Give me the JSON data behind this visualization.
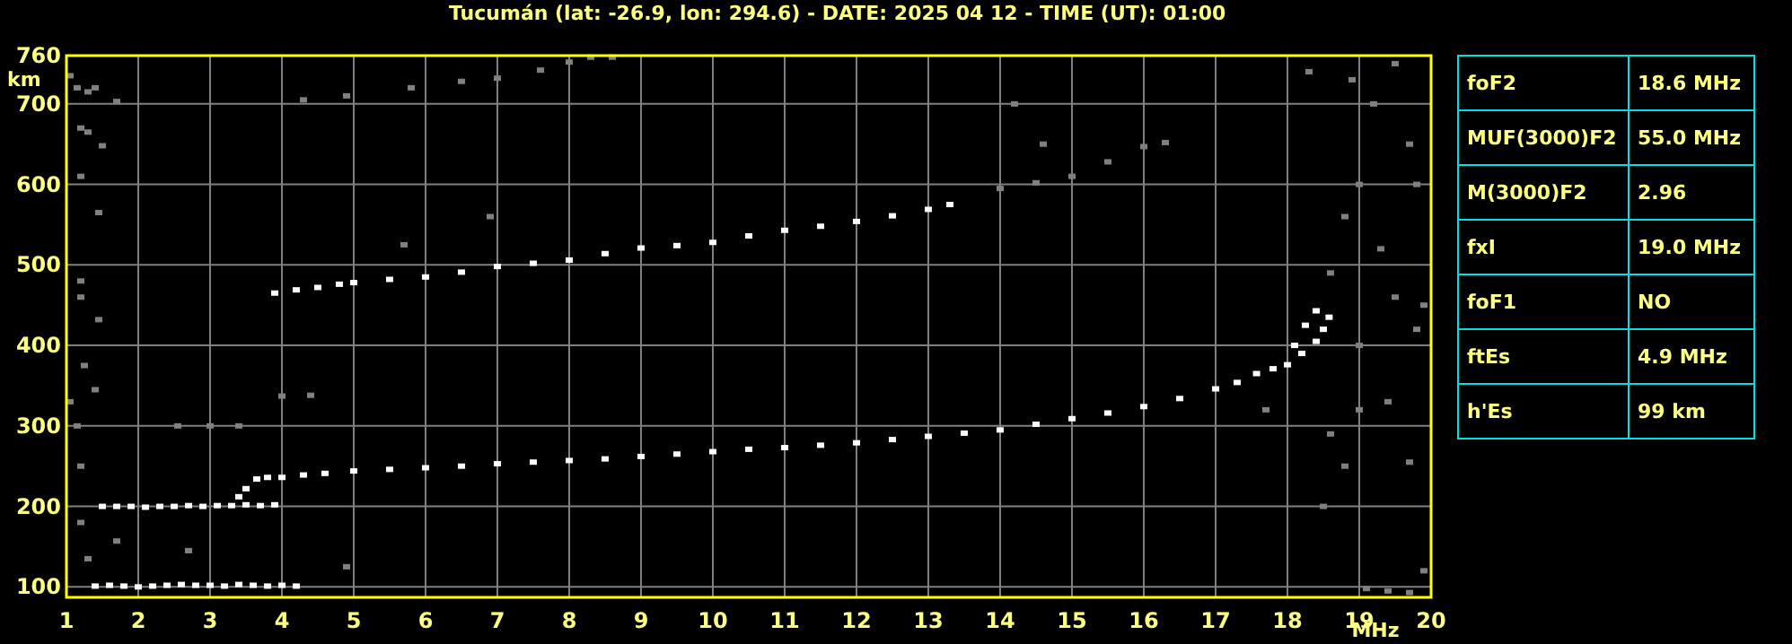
{
  "chart_data": [
    {
      "type": "scatter",
      "title": "Tucumán (lat: -26.9, lon: 294.6) - DATE: 2025 04 12 - TIME (UT): 01:00",
      "xlabel": "MHz",
      "ylabel": "km",
      "xlim": [
        1,
        20
      ],
      "ylim": [
        87,
        760
      ],
      "xticks": [
        1,
        2,
        3,
        4,
        5,
        6,
        7,
        8,
        9,
        10,
        11,
        12,
        13,
        14,
        15,
        16,
        17,
        18,
        19,
        20
      ],
      "yticks": [
        100,
        200,
        300,
        400,
        500,
        600,
        700,
        760
      ],
      "grid": true,
      "marker": "square",
      "series": [
        {
          "color": "#ffffff",
          "x": [
            1.4,
            1.6,
            1.8,
            2.0,
            2.2,
            2.4,
            2.6,
            2.8,
            3.0,
            3.2,
            3.4,
            3.6,
            3.8,
            4.0,
            4.2
          ],
          "values": [
            101,
            102,
            101,
            100,
            101,
            102,
            103,
            102,
            102,
            101,
            103,
            102,
            101,
            102,
            101
          ]
        },
        {
          "color": "#ffffff",
          "x": [
            1.5,
            1.7,
            1.9,
            2.1,
            2.3,
            2.5,
            2.7,
            2.9,
            3.1,
            3.3,
            3.5,
            3.7,
            3.9,
            3.4,
            3.5,
            3.65,
            3.8,
            4.0,
            4.3,
            4.6,
            5.0,
            5.5,
            6.0,
            6.5,
            7.0,
            7.5,
            8.0,
            8.5,
            9.0,
            9.5,
            10.0,
            10.5,
            11.0,
            11.5,
            12.0,
            12.5,
            13.0,
            13.5,
            14.0,
            14.5,
            15.0,
            15.5,
            16.0,
            16.5,
            17.0,
            17.3,
            17.57,
            17.8,
            18.0,
            18.2,
            18.4,
            18.5,
            18.58,
            18.1,
            18.25,
            18.4
          ],
          "values": [
            200,
            200,
            200,
            199,
            200,
            200,
            201,
            200,
            201,
            201,
            202,
            201,
            202,
            212,
            222,
            234,
            236,
            236,
            239,
            241,
            244,
            246,
            248,
            250,
            253,
            255,
            257,
            259,
            262,
            265,
            268,
            271,
            273,
            276,
            279,
            283,
            287,
            291,
            295,
            302,
            309,
            316,
            324,
            334,
            346,
            354,
            365,
            371,
            376,
            390,
            405,
            420,
            435,
            400,
            425,
            443
          ]
        },
        {
          "color": "#ffffff",
          "x": [
            3.9,
            4.2,
            4.5,
            4.8,
            5.0,
            5.5,
            6.0,
            6.5,
            7.0,
            7.5,
            8.0,
            8.5,
            9.0,
            9.5,
            10.0,
            10.5,
            11.0,
            11.5,
            12.0,
            12.5,
            13.0,
            13.3
          ],
          "values": [
            465,
            469,
            472,
            476,
            478,
            482,
            485,
            491,
            498,
            502,
            506,
            514,
            521,
            524,
            528,
            536,
            543,
            548,
            554,
            561,
            569,
            575
          ]
        },
        {
          "color": "#808080",
          "x": [
            14.0,
            14.5,
            15.0,
            15.5,
            16.0,
            16.3,
            1.05,
            1.15,
            1.3,
            1.4,
            1.2,
            1.3,
            1.5,
            1.2,
            1.45,
            1.2,
            1.2,
            1.45,
            1.25,
            1.4,
            1.05,
            1.15,
            1.2,
            1.2,
            1.3,
            1.7,
            1.7,
            2.55,
            3.0,
            3.4,
            4.0,
            4.4,
            4.3,
            4.9,
            5.8,
            6.5,
            7.0,
            7.6,
            8.0,
            8.3,
            8.6,
            2.7,
            4.9,
            5.7,
            6.9,
            14.2,
            14.6,
            18.3,
            18.9,
            19.2,
            19.5,
            19.7,
            19.8,
            19.0,
            18.8,
            18.6,
            19.3,
            19.5,
            19.9,
            19.0,
            19.8,
            19.4,
            19.0,
            18.6,
            17.7,
            18.5,
            18.8,
            19.7,
            19.1,
            19.4,
            19.7,
            19.9
          ],
          "values": [
            595,
            602,
            610,
            628,
            647,
            652,
            735,
            720,
            715,
            720,
            670,
            665,
            648,
            610,
            565,
            480,
            460,
            432,
            375,
            345,
            330,
            300,
            250,
            180,
            135,
            157,
            703,
            300,
            300,
            300,
            337,
            338,
            705,
            710,
            720,
            728,
            732,
            742,
            752,
            758,
            758,
            145,
            125,
            525,
            560,
            700,
            650,
            740,
            730,
            700,
            750,
            650,
            600,
            600,
            560,
            490,
            520,
            460,
            450,
            400,
            420,
            330,
            320,
            290,
            320,
            200,
            250,
            255,
            98,
            95,
            93,
            120
          ]
        }
      ]
    },
    {
      "type": "other",
      "annotations": [
        "foF2",
        "18.6 MHz",
        "MUF(3000)F2",
        "55.0 MHz",
        "M(3000)F2",
        "2.96",
        "fxI",
        "19.0 MHz",
        "foF1",
        "NO",
        "ftEs",
        "4.9 MHz",
        "h'Es",
        "99 km"
      ]
    }
  ]
}
